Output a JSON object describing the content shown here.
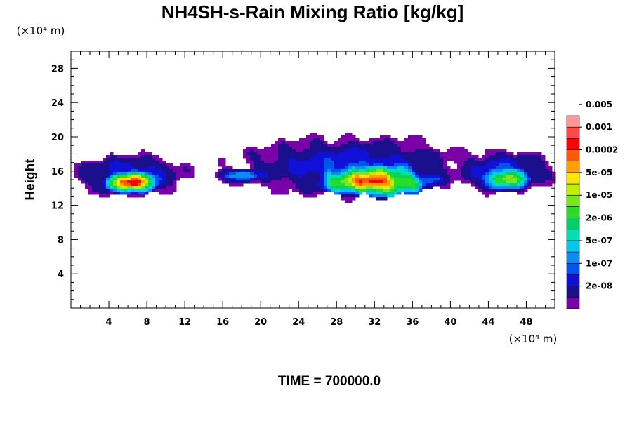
{
  "chart_data": {
    "type": "heatmap",
    "title": "NH4SH-s-Rain Mixing Ratio [kg/kg]",
    "ylabel": "Height",
    "xlabel": "",
    "x_unit": "(×10⁴ m)",
    "y_unit": "(×10⁴ m)",
    "xlim": [
      0,
      51
    ],
    "ylim": [
      0,
      30
    ],
    "x_ticks": [
      4,
      8,
      12,
      16,
      20,
      24,
      28,
      32,
      36,
      40,
      44,
      48
    ],
    "x_tick_labels": [
      "4",
      "8",
      "12",
      "16",
      "20",
      "24",
      "28",
      "32",
      "36",
      "40",
      "44",
      "48"
    ],
    "y_ticks": [
      4,
      8,
      12,
      16,
      20,
      24,
      28
    ],
    "y_tick_labels": [
      "4",
      "8",
      "12",
      "16",
      "20",
      "24",
      "28"
    ],
    "colorbar": {
      "colors": [
        "#7a00a8",
        "#1a0f8c",
        "#1010d8",
        "#0055ee",
        "#0a8cf2",
        "#00c8f0",
        "#00e0b4",
        "#00d264",
        "#28dc28",
        "#78e61e",
        "#c0f000",
        "#ffe600",
        "#ffa000",
        "#ff5a00",
        "#ff0000",
        "#ff4a4a",
        "#ff9898"
      ],
      "tick_labels": [
        "2e-08",
        "1e-07",
        "5e-07",
        "2e-06",
        "1e-05",
        "5e-05",
        "0.0002",
        "0.001",
        "0.005"
      ]
    },
    "field_regions": [
      {
        "x": [
          0,
          12.5
        ],
        "y": [
          13,
          18
        ],
        "max_level": 14,
        "peak_x": 6.5,
        "peak_y": 14.6
      },
      {
        "x": [
          14.5,
          22
        ],
        "y": [
          14.5,
          16.5
        ],
        "max_level": 4,
        "peak_x": 18,
        "peak_y": 15.5
      },
      {
        "x": [
          17.5,
          42
        ],
        "y": [
          13,
          20
        ],
        "max_level": 14,
        "peak_x": 32,
        "peak_y": 14.7
      },
      {
        "x": [
          40,
          51
        ],
        "y": [
          13.5,
          18.5
        ],
        "max_level": 9,
        "peak_x": 46,
        "peak_y": 15
      }
    ],
    "grid": false,
    "legend_position": "right"
  },
  "footer": {
    "time_label": "TIME = 700000.0"
  }
}
